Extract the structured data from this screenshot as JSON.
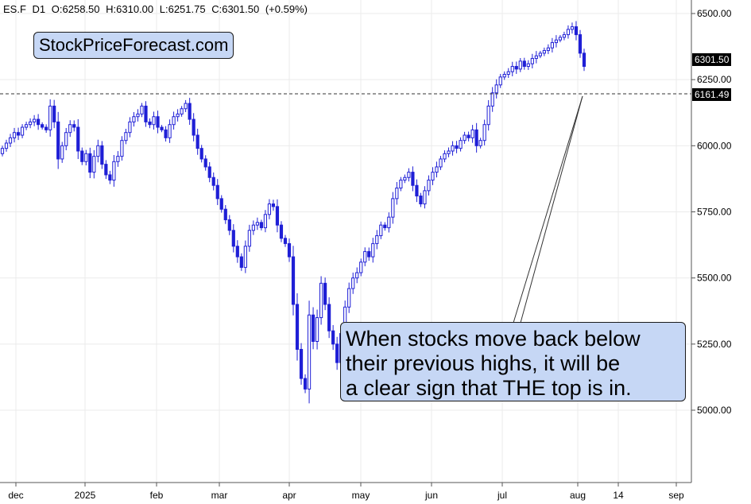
{
  "header": {
    "symbol": "ES.F",
    "timeframe": "D1",
    "open": "O:6258.50",
    "high": "H:6310.00",
    "low": "L:6251.75",
    "close": "C:6301.50",
    "change": "(+0.59%)"
  },
  "brand": "StockPriceForecast.com",
  "annotation": {
    "lines": [
      "When stocks move back below",
      "their previous highs, it will be",
      "a clear sign that THE top is in."
    ]
  },
  "colors": {
    "candle": "#1f1fd6",
    "grid": "#ebebeb",
    "label_box": "#c6d7f5",
    "price_badge": "#000000"
  },
  "chart_data": {
    "type": "candlestick",
    "y_axis_ticks": [
      "6500.00",
      "6250.00",
      "6000.00",
      "5750.00",
      "5500.00",
      "5250.00",
      "5000.00"
    ],
    "y_axis_values": [
      6500,
      6250,
      6000,
      5750,
      5500,
      5250,
      5000
    ],
    "ylim": [
      4780,
      6550
    ],
    "x_axis_ticks": [
      "dec",
      "2025",
      "feb",
      "mar",
      "apr",
      "may",
      "jun",
      "jul",
      "aug",
      "14",
      "sep"
    ],
    "last_price_label": "6301.50",
    "reference_line": {
      "value": 6161.49,
      "label": "6161.49",
      "style": "dashed"
    },
    "grid": true,
    "closes": [
      5990,
      6010,
      6030,
      6050,
      6040,
      6070,
      6080,
      6090,
      6100,
      6080,
      6070,
      6060,
      6150,
      6090,
      5950,
      6000,
      6050,
      6080,
      6070,
      5980,
      5940,
      5970,
      5900,
      5960,
      6000,
      5930,
      5890,
      5870,
      5940,
      5960,
      6020,
      6050,
      6090,
      6110,
      6120,
      6150,
      6090,
      6080,
      6110,
      6070,
      6060,
      6030,
      6080,
      6110,
      6120,
      6140,
      6160,
      6100,
      6040,
      5990,
      5950,
      5920,
      5880,
      5850,
      5800,
      5760,
      5720,
      5680,
      5620,
      5580,
      5540,
      5620,
      5680,
      5700,
      5710,
      5690,
      5740,
      5780,
      5770,
      5700,
      5650,
      5630,
      5580,
      5400,
      5230,
      5120,
      5080,
      5360,
      5260,
      5350,
      5480,
      5400,
      5300,
      5250,
      5180,
      5290,
      5390,
      5460,
      5500,
      5520,
      5560,
      5600,
      5580,
      5630,
      5660,
      5700,
      5690,
      5730,
      5800,
      5840,
      5870,
      5880,
      5900,
      5850,
      5810,
      5780,
      5830,
      5870,
      5900,
      5920,
      5950,
      5970,
      5980,
      6000,
      5990,
      6020,
      6040,
      6030,
      6060,
      6000,
      6020,
      6080,
      6150,
      6200,
      6230,
      6260,
      6270,
      6280,
      6300,
      6290,
      6320,
      6300,
      6310,
      6330,
      6340,
      6350,
      6360,
      6370,
      6390,
      6400,
      6410,
      6420,
      6440,
      6450,
      6420,
      6350,
      6300
    ]
  }
}
